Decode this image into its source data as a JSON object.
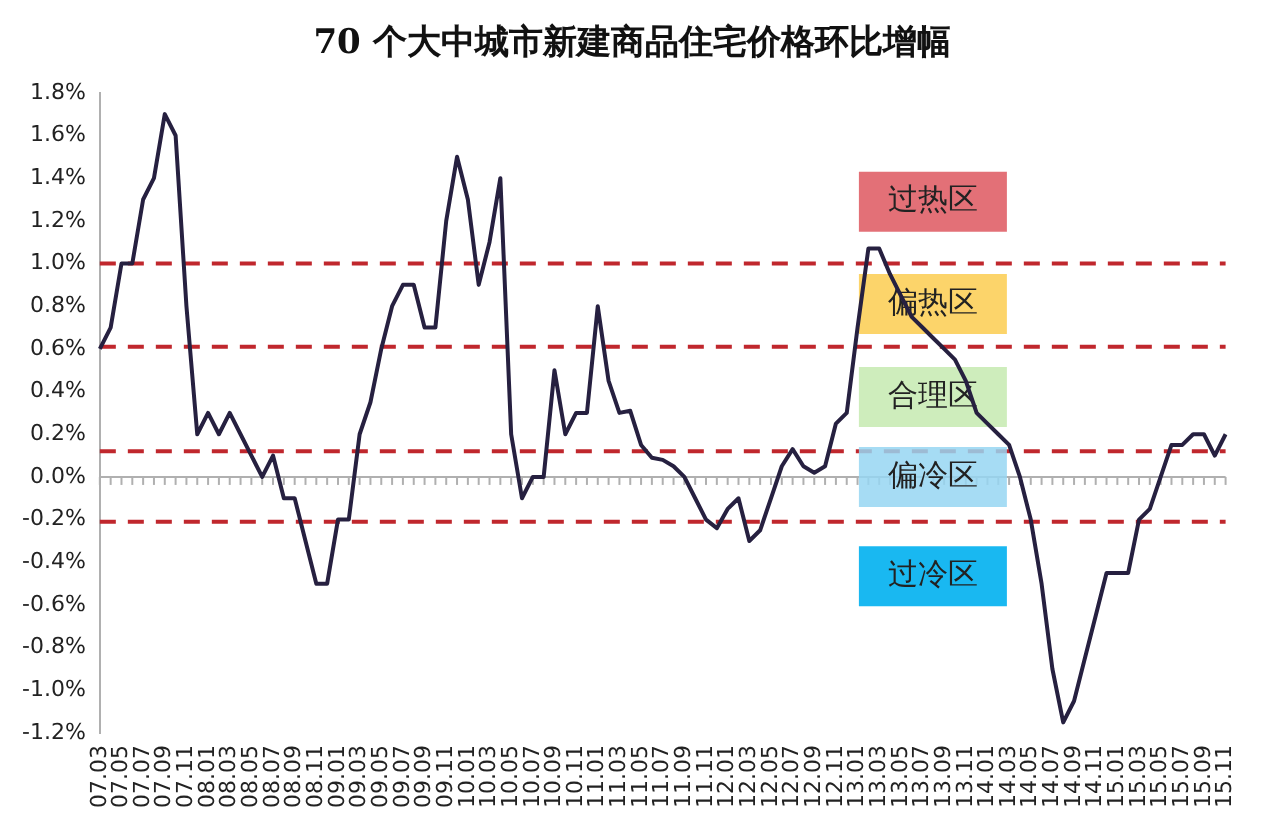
{
  "chart_data": {
    "type": "line",
    "title": "70 个大中城市新建商品住宅价格环比增幅",
    "categories": [
      "07.03",
      null,
      "07.05",
      null,
      "07.07",
      null,
      "07.09",
      null,
      "07.11",
      null,
      "08.01",
      null,
      "08.03",
      null,
      "08.05",
      null,
      "08.07",
      null,
      "08.09",
      null,
      "08.11",
      null,
      "09.01",
      null,
      "09.03",
      null,
      "09.05",
      null,
      "09.07",
      null,
      "09.09",
      null,
      "09.11",
      null,
      "10.01",
      null,
      "10.03",
      null,
      "10.05",
      null,
      "10.07",
      null,
      "10.09",
      null,
      "10.11",
      null,
      "11.01",
      null,
      "11.03",
      null,
      "11.05",
      null,
      "11.07",
      null,
      "11.09",
      null,
      "11.11",
      null,
      "12.01",
      null,
      "12.03",
      null,
      "12.05",
      null,
      "12.07",
      null,
      "12.09",
      null,
      "12.11",
      null,
      "13.01",
      null,
      "13.03",
      null,
      "13.05",
      null,
      "13.07",
      null,
      "13.09",
      null,
      "13.11",
      null,
      "14.01",
      null,
      "14.03",
      null,
      "14.05",
      null,
      "14.07",
      null,
      "14.09",
      null,
      "14.11",
      null,
      "15.01",
      null,
      "15.03",
      null,
      "15.05",
      null,
      "15.07",
      null,
      "15.09",
      null,
      "15.11"
    ],
    "series": [
      {
        "color": "#262040",
        "values": [
          0.6,
          0.7,
          1.0,
          1.0,
          1.3,
          1.4,
          1.7,
          1.6,
          0.8,
          0.2,
          0.3,
          0.2,
          0.3,
          0.2,
          0.1,
          0.0,
          0.1,
          -0.1,
          -0.1,
          -0.3,
          -0.5,
          -0.5,
          -0.2,
          -0.2,
          0.2,
          0.35,
          0.6,
          0.8,
          0.9,
          0.9,
          0.7,
          0.7,
          1.2,
          1.5,
          1.3,
          0.9,
          1.1,
          1.4,
          0.2,
          -0.1,
          0.0,
          0.0,
          0.5,
          0.2,
          0.3,
          0.3,
          0.8,
          0.45,
          0.3,
          0.31,
          0.15,
          0.09,
          0.08,
          0.05,
          0.0,
          -0.1,
          -0.2,
          -0.24,
          -0.15,
          -0.1,
          -0.3,
          -0.25,
          -0.1,
          0.05,
          0.13,
          0.05,
          0.02,
          0.05,
          0.25,
          0.3,
          0.7,
          1.07,
          1.07,
          0.95,
          0.85,
          0.75,
          0.7,
          0.65,
          0.6,
          0.55,
          0.45,
          0.3,
          0.25,
          0.2,
          0.15,
          0.0,
          -0.2,
          -0.5,
          -0.9,
          -1.15,
          -1.05,
          -0.85,
          -0.65,
          -0.45,
          -0.45,
          -0.45,
          -0.2,
          -0.15,
          0.0,
          0.15,
          0.15,
          0.2,
          0.2,
          0.1,
          0.2
        ]
      }
    ],
    "ylim": [
      -1.2,
      1.8
    ],
    "yticks": [
      {
        "value": -1.2,
        "label": "-1.2%"
      },
      {
        "value": -1.0,
        "label": "-1.0%"
      },
      {
        "value": -0.8,
        "label": "-0.8%"
      },
      {
        "value": -0.6,
        "label": "-0.6%"
      },
      {
        "value": -0.4,
        "label": "-0.4%"
      },
      {
        "value": -0.2,
        "label": "-0.2%"
      },
      {
        "value": 0,
        "label": "0.0%"
      },
      {
        "value": 0.2,
        "label": "0.2%"
      },
      {
        "value": 0.4,
        "label": "0.4%"
      },
      {
        "value": 0.6,
        "label": "0.6%"
      },
      {
        "value": 0.8,
        "label": "0.8%"
      },
      {
        "value": 1.0,
        "label": "1.0%"
      },
      {
        "value": 1.2,
        "label": "1.2%"
      },
      {
        "value": 1.4,
        "label": "1.4%"
      },
      {
        "value": 1.6,
        "label": "1.6%"
      },
      {
        "value": 1.8,
        "label": "1.8%"
      }
    ],
    "ref_lines": [
      {
        "axis": "y",
        "value": 1.0,
        "color": "#c0272d",
        "line_style": "dashed"
      },
      {
        "axis": "y",
        "value": 0.61,
        "color": "#c0272d",
        "line_style": "dashed"
      },
      {
        "axis": "y",
        "value": 0.12,
        "color": "#c0272d",
        "line_style": "dashed"
      },
      {
        "axis": "y",
        "value": -0.21,
        "color": "#c0272d",
        "line_style": "dashed"
      }
    ],
    "annotations": [
      "过热区",
      "偏热区",
      "合理区",
      "偏冷区",
      "过冷区"
    ],
    "grid": false,
    "legend": false,
    "marker": "none",
    "line_style": "solid"
  }
}
